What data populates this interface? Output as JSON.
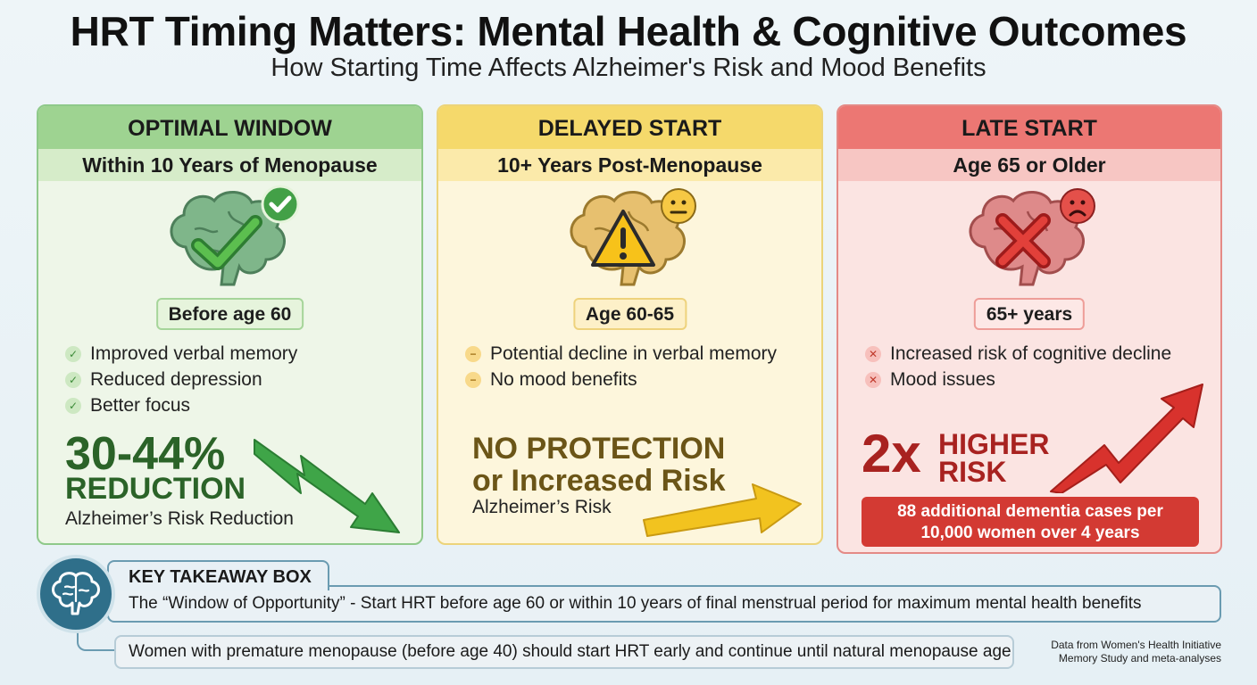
{
  "header": {
    "title": "HRT Timing Matters: Mental Health & Cognitive Outcomes",
    "subtitle": "How Starting Time Affects Alzheimer's Risk and Mood Benefits"
  },
  "cards": [
    {
      "heading": "OPTIMAL WINDOW",
      "subheading": "Within 10 Years of Menopause",
      "age": "Before age 60",
      "icon": "brain-checkmark-icon",
      "bullets": [
        "Improved verbal memory",
        "Reduced depression",
        "Better focus"
      ],
      "stat_line1": "30-44%",
      "stat_line2": "REDUCTION",
      "stat_caption": "Alzheimer’s Risk Reduction",
      "trend": "down",
      "color": "#3b8a37"
    },
    {
      "heading": "DELAYED START",
      "subheading": "10+ Years Post-Menopause",
      "age": "Age 60-65",
      "icon": "brain-warning-icon",
      "bullets": [
        "Potential decline in verbal memory",
        "No mood benefits"
      ],
      "stat_line1": "NO PROTECTION",
      "stat_line2": "or Increased Risk",
      "stat_caption": "Alzheimer’s Risk",
      "trend": "up-slight",
      "color": "#d9a91b"
    },
    {
      "heading": "LATE START",
      "subheading": "Age 65 or Older",
      "age": "65+ years",
      "icon": "brain-x-icon",
      "bullets": [
        "Increased risk of cognitive decline",
        "Mood issues"
      ],
      "stat_line1": "2x",
      "stat_side": "HIGHER RISK",
      "stat_box_line1": "88 additional dementia cases per",
      "stat_box_line2": "10,000 women over 4 years",
      "trend": "up",
      "color": "#d33a33"
    }
  ],
  "takeaway": {
    "label": "KEY TAKEAWAY BOX",
    "main": "The “Window of Opportunity” - Start HRT before age 60 or within 10 years of final menstrual period for maximum mental health benefits",
    "note": "Women with premature menopause (before age 40) should start HRT early and continue until natural menopause age",
    "icon": "brain-icon"
  },
  "source": {
    "line1": "Data from Women's Health Initiative",
    "line2": "Memory Study and meta-analyses"
  }
}
